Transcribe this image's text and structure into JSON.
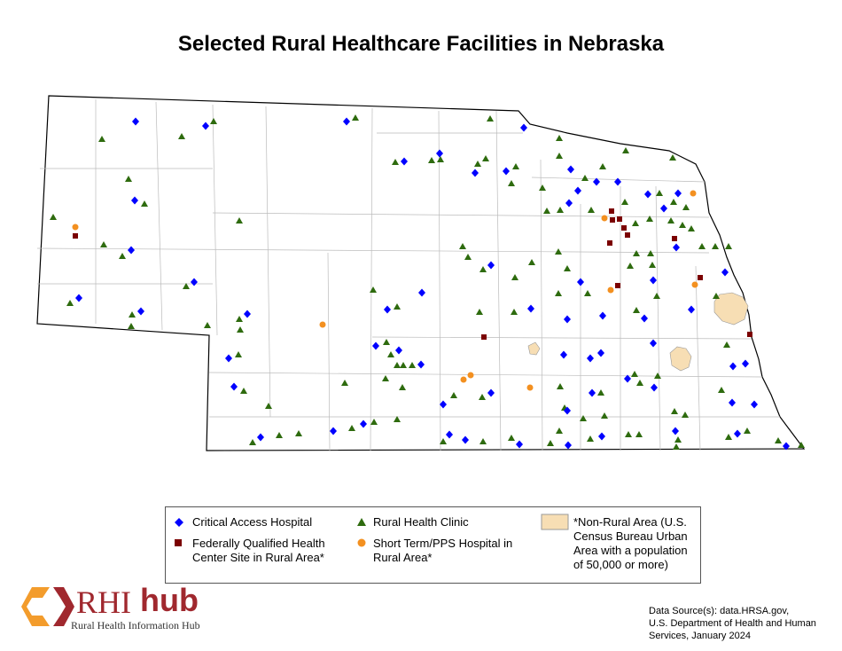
{
  "title": "Selected Rural Healthcare Facilities in Nebraska",
  "legend": {
    "critical_access_hospital": "Critical Access Hospital",
    "rural_health_clinic": "Rural Health Clinic",
    "non_rural_area": "*Non-Rural Area (U.S. Census Bureau Urban Area with a population of 50,000 or more)",
    "fqhc": "Federally Qualified Health Center Site in Rural Area*",
    "short_term": "Short Term/PPS Hospital in Rural Area*"
  },
  "logo": {
    "rhi": "RHI",
    "hub": "hub",
    "subtitle": "Rural Health Information Hub"
  },
  "source": [
    "Data Source(s): data.HRSA.gov,",
    "U.S. Department of Health and Human",
    "Services, January 2024"
  ]
}
